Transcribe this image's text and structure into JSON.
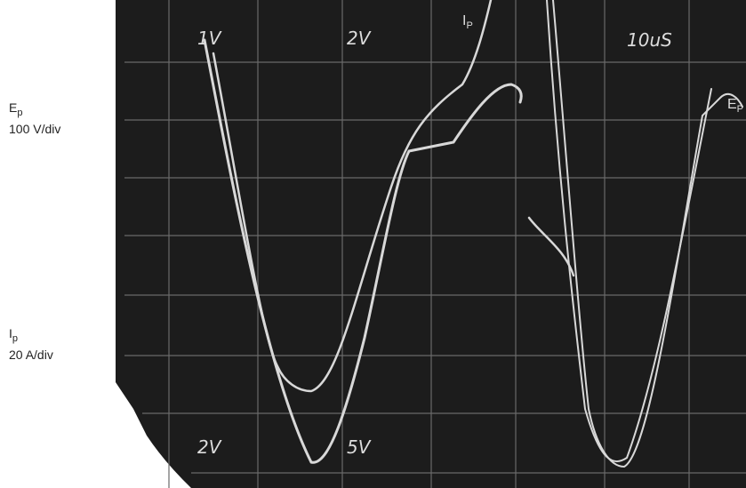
{
  "labels": {
    "ep": {
      "symbol": "E",
      "subscript": "p",
      "scale": "100 V/div"
    },
    "ip": {
      "symbol": "I",
      "subscript": "p",
      "scale": "20 A/div"
    }
  },
  "screen": {
    "top_left": "1V",
    "top_middle": "2V",
    "top_right": "10uS",
    "bottom_left": "2V",
    "bottom_middle": "5V",
    "trace_ip": {
      "symbol": "I",
      "subscript": "P"
    },
    "trace_ep": {
      "symbol": "E",
      "subscript": "P"
    }
  }
}
